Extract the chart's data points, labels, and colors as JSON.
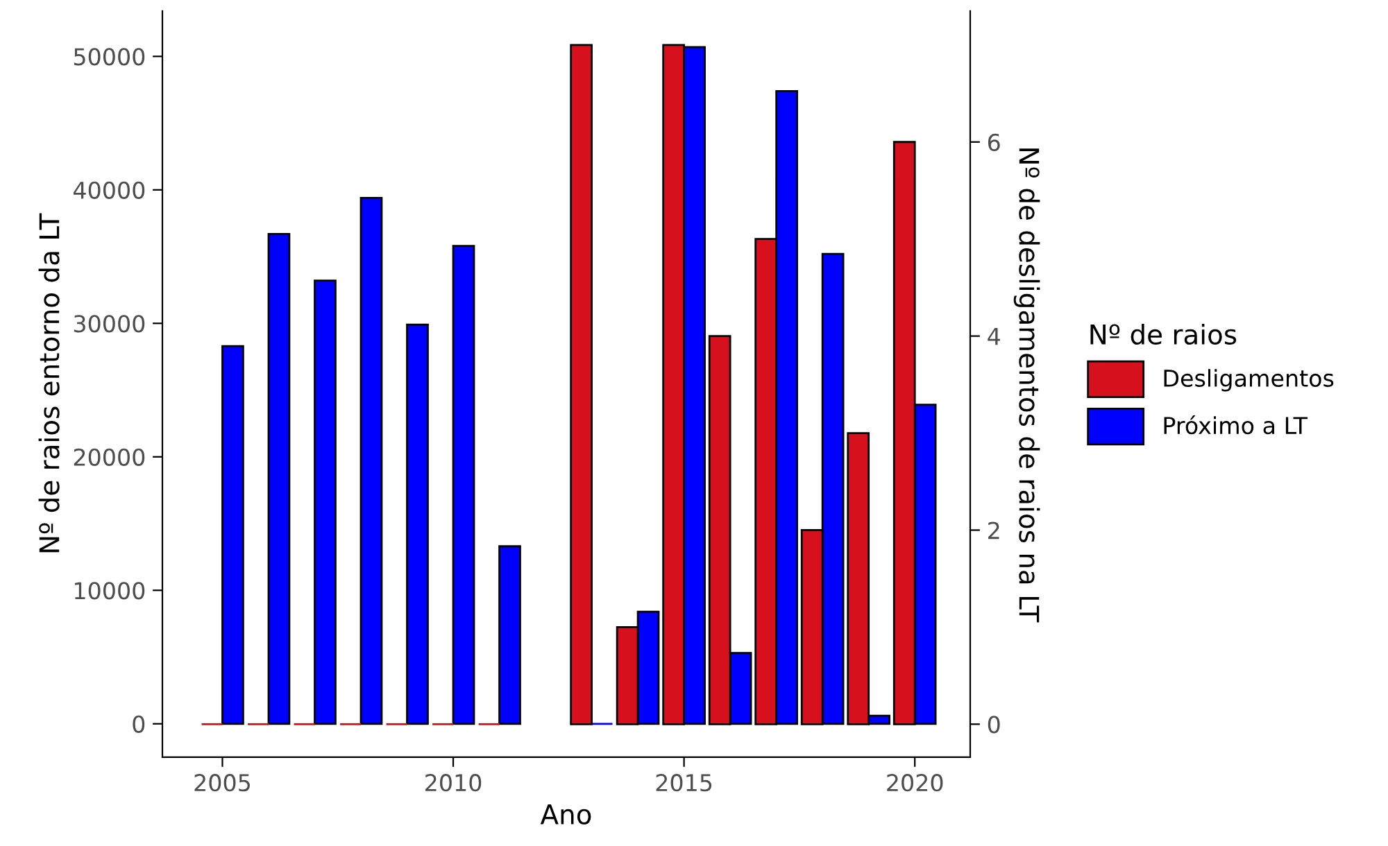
{
  "chart_data": {
    "type": "bar",
    "xlabel": "Ano",
    "ylabel": "Nº de raios entorno da LT",
    "y2label": "Nº de desligamentos de raios na LT",
    "legend_title": "Nº de raios",
    "x": [
      2005,
      2006,
      2007,
      2008,
      2009,
      2010,
      2011,
      2012,
      2013,
      2014,
      2015,
      2016,
      2017,
      2018,
      2019,
      2020
    ],
    "series": [
      {
        "name": "Desligamentos",
        "color": "#d7101e",
        "axis": "y2",
        "values": [
          0,
          0,
          0,
          0,
          0,
          0,
          0,
          null,
          7,
          1,
          7,
          4,
          5,
          2,
          3,
          6
        ]
      },
      {
        "name": "Próximo a LT",
        "color": "#0000ff",
        "values": [
          28300,
          36700,
          33200,
          39400,
          29900,
          35800,
          13300,
          null,
          0,
          8400,
          50700,
          5300,
          47400,
          35200,
          600,
          23900
        ]
      }
    ],
    "xlim": [
      2003.7,
      2021.2
    ],
    "xticks": [
      2005,
      2010,
      2015,
      2020
    ],
    "ylim": [
      -2500,
      53400
    ],
    "yticks": [
      0,
      10000,
      20000,
      30000,
      40000,
      50000
    ],
    "y2lim": [
      -0.34,
      7.35
    ],
    "y2ticks": [
      0,
      2,
      4,
      6
    ],
    "grid": false,
    "legend": "right"
  }
}
